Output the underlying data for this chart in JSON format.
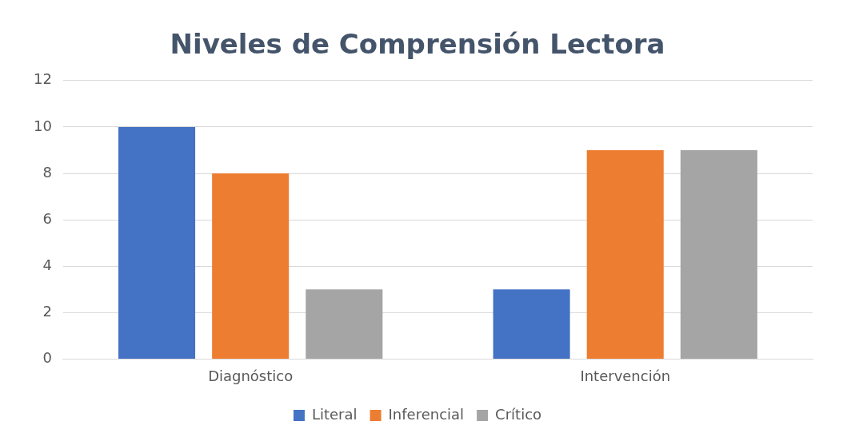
{
  "chart_data": {
    "type": "bar",
    "title": "Niveles de Comprensión Lectora",
    "categories": [
      "Diagnóstico",
      "Intervención"
    ],
    "series": [
      {
        "name": "Literal",
        "color": "#4472c4",
        "values": [
          10,
          3
        ]
      },
      {
        "name": "Inferencial",
        "color": "#ed7d31",
        "values": [
          8,
          9
        ]
      },
      {
        "name": "Crítico",
        "color": "#a5a5a5",
        "values": [
          3,
          9
        ]
      }
    ],
    "ylim": [
      0,
      12
    ],
    "yticks": [
      0,
      2,
      4,
      6,
      8,
      10,
      12
    ],
    "grid": "y",
    "legend": "bottom"
  }
}
